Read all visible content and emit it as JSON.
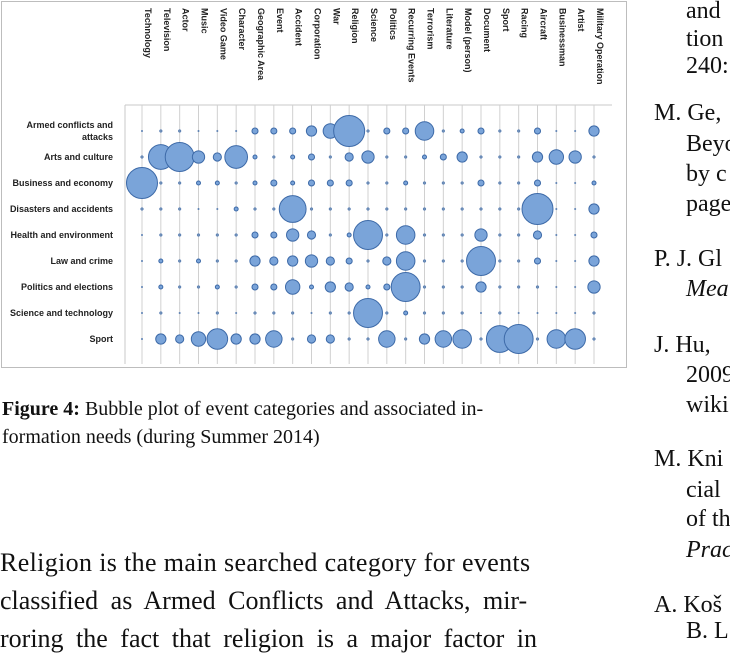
{
  "figure": {
    "caption_label": "Figure 4:",
    "caption_text": "Bubble plot of event categories and associated information needs (during Summer 2014)",
    "caption_lines": [
      "Bubble plot of event categories and associated in-",
      "formation needs (during Summer 2014)"
    ]
  },
  "chart_data": {
    "type": "scatter",
    "subtype": "bubble",
    "columns": [
      "Technology",
      "Television",
      "Actor",
      "Music",
      "Video Game",
      "Character",
      "Geographic Area",
      "Event",
      "Accident",
      "Corporation",
      "War",
      "Religion",
      "Science",
      "Politics",
      "Recurring Events",
      "Terrorism",
      "Literature",
      "Model (person)",
      "Document",
      "Sport",
      "Racing",
      "Aircraft",
      "Businessman",
      "Artist",
      "Military Operation"
    ],
    "rows": [
      "Armed conflicts and attacks",
      "Arts and culture",
      "Business and economy",
      "Disasters and accidents",
      "Health and environment",
      "Law and crime",
      "Politics and elections",
      "Science and technology",
      "Sport"
    ],
    "row_label_lines": [
      [
        "Armed conflicts and",
        "attacks"
      ],
      [
        "Arts and culture"
      ],
      [
        "Business and economy"
      ],
      [
        "Disasters and accidents"
      ],
      [
        "Health and environment"
      ],
      [
        "Law and crime"
      ],
      [
        "Politics and elections"
      ],
      [
        "Science and technology"
      ],
      [
        "Sport"
      ]
    ],
    "bubble_size_scale": "relative 0-15",
    "sizes": [
      [
        0,
        1,
        1,
        0,
        0,
        0,
        3,
        3,
        3,
        5,
        7,
        15,
        1,
        3,
        3,
        9,
        1,
        2,
        3,
        1,
        1,
        3,
        0,
        0,
        5
      ],
      [
        1,
        12,
        14,
        6,
        4,
        11,
        2,
        1,
        2,
        3,
        1,
        4,
        6,
        1,
        1,
        2,
        3,
        5,
        1,
        1,
        1,
        5,
        7,
        6,
        1
      ],
      [
        15,
        1,
        1,
        2,
        2,
        1,
        2,
        3,
        2,
        3,
        3,
        3,
        1,
        1,
        2,
        1,
        1,
        1,
        3,
        1,
        1,
        3,
        0,
        0,
        2
      ],
      [
        1,
        1,
        1,
        0,
        0,
        2,
        1,
        1,
        13,
        1,
        1,
        1,
        1,
        1,
        1,
        1,
        1,
        1,
        1,
        1,
        1,
        15,
        0,
        0,
        5
      ],
      [
        0,
        1,
        1,
        1,
        1,
        1,
        3,
        3,
        6,
        4,
        1,
        2,
        14,
        1,
        9,
        1,
        1,
        1,
        6,
        1,
        1,
        4,
        0,
        0,
        3
      ],
      [
        0,
        2,
        1,
        2,
        1,
        1,
        5,
        4,
        5,
        6,
        4,
        3,
        1,
        4,
        9,
        1,
        1,
        1,
        14,
        1,
        1,
        3,
        0,
        0,
        5
      ],
      [
        0,
        2,
        1,
        1,
        2,
        1,
        3,
        3,
        7,
        2,
        5,
        4,
        2,
        3,
        14,
        1,
        1,
        1,
        5,
        1,
        1,
        1,
        0,
        0,
        6
      ],
      [
        0,
        1,
        0,
        0,
        1,
        0,
        1,
        1,
        1,
        0,
        1,
        1,
        14,
        1,
        2,
        1,
        1,
        1,
        0,
        1,
        0,
        0,
        0,
        0,
        1
      ],
      [
        0,
        5,
        4,
        7,
        10,
        5,
        5,
        8,
        1,
        4,
        4,
        1,
        1,
        8,
        1,
        5,
        8,
        9,
        1,
        13,
        14,
        1,
        9,
        10,
        1
      ]
    ],
    "grid": true,
    "legend": "none",
    "bubble_color": "#7aa4d9",
    "bubble_stroke": "#3d6aa8"
  },
  "body": {
    "lines": [
      "Religion is the main searched category for events",
      "classified as Armed Conflicts and Attacks, mir-",
      "roring the fact that religion is a major factor in"
    ]
  },
  "right_column": {
    "fragments": [
      {
        "text": "and ",
        "italic": false
      },
      {
        "text": "tion",
        "italic": false
      },
      {
        "text": "240:",
        "italic": false
      },
      {
        "text": "M. Ge,",
        "italic": false
      },
      {
        "text": "Beyo",
        "italic": false
      },
      {
        "text": "by c",
        "italic": false
      },
      {
        "text": "page",
        "italic": false
      },
      {
        "text": "P. J. Gl",
        "italic": false
      },
      {
        "text": "Mea",
        "italic": true
      },
      {
        "text": "J. Hu, ",
        "italic": false
      },
      {
        "text": "2009",
        "italic": false
      },
      {
        "text": "wiki",
        "italic": false
      },
      {
        "text": "M. Kni",
        "italic": false
      },
      {
        "text": "cial ",
        "italic": false
      },
      {
        "text": "of th",
        "italic": false
      },
      {
        "text": "Prac",
        "italic": true
      },
      {
        "text": "A. Koš",
        "italic": false
      },
      {
        "text": "B. L",
        "italic": false
      }
    ]
  }
}
